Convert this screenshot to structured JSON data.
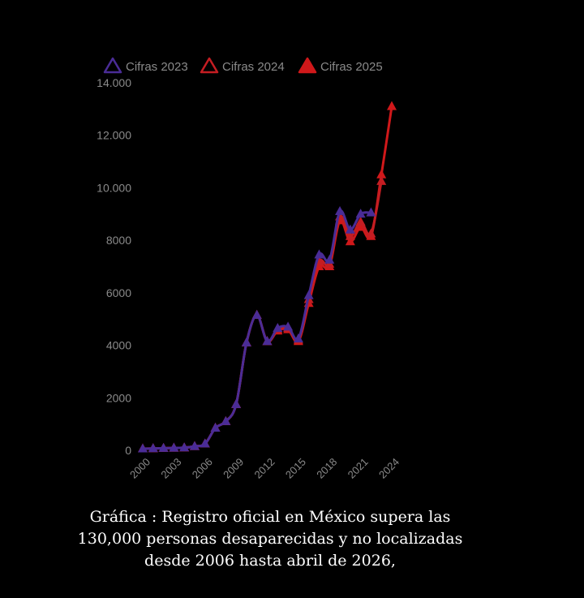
{
  "caption": {
    "line1": "Gráfica : Registro oficial en México supera las",
    "line2": "130,000 personas desaparecidas y no localizadas",
    "line3": "desde 2006 hasta abril de 2026,"
  },
  "chart_data": {
    "type": "line",
    "title": "",
    "xlabel": "",
    "ylabel": "",
    "legend_position": "top",
    "grid": false,
    "ylim": [
      0,
      14000
    ],
    "xlim": [
      2000,
      2024
    ],
    "y_ticks": [
      0,
      2000,
      4000,
      6000,
      8000,
      10000,
      12000,
      14000
    ],
    "y_tick_labels": [
      "0",
      "2000",
      "4000",
      "6000",
      "8000",
      "10.000",
      "12.000",
      "14.000"
    ],
    "x_ticks": [
      2000,
      2003,
      2006,
      2009,
      2012,
      2015,
      2018,
      2021,
      2024
    ],
    "x_tick_labels": [
      "2000",
      "2003",
      "2006",
      "2009",
      "2012",
      "2015",
      "2018",
      "2021",
      "2024"
    ],
    "series": [
      {
        "name": "Cifras 2025",
        "color": "#d0181a",
        "marker": "filled-triangle",
        "x": [
          2000,
          2001,
          2002,
          2003,
          2004,
          2005,
          2006,
          2007,
          2008,
          2009,
          2010,
          2011,
          2012,
          2013,
          2014,
          2015,
          2016,
          2017,
          2018,
          2019,
          2020,
          2021,
          2022,
          2023,
          2024
        ],
        "y": [
          60,
          70,
          80,
          90,
          100,
          150,
          250,
          850,
          1100,
          1750,
          4100,
          5150,
          4150,
          4550,
          4600,
          4150,
          5600,
          7000,
          7000,
          8750,
          7950,
          8500,
          8150,
          10500,
          13100
        ]
      },
      {
        "name": "Cifras 2024",
        "color": "#c41d22",
        "marker": "hollow-triangle",
        "x": [
          2000,
          2001,
          2002,
          2003,
          2004,
          2005,
          2006,
          2007,
          2008,
          2009,
          2010,
          2011,
          2012,
          2013,
          2014,
          2015,
          2016,
          2017,
          2018,
          2019,
          2020,
          2021,
          2022,
          2023
        ],
        "y": [
          60,
          70,
          80,
          90,
          100,
          150,
          250,
          850,
          1100,
          1750,
          4100,
          5150,
          4150,
          4600,
          4650,
          4200,
          5750,
          7200,
          7100,
          8900,
          8150,
          8700,
          8250,
          10250
        ]
      },
      {
        "name": "Cifras 2023",
        "color": "#4a2c96",
        "marker": "hollow-triangle",
        "x": [
          2000,
          2001,
          2002,
          2003,
          2004,
          2005,
          2006,
          2007,
          2008,
          2009,
          2010,
          2011,
          2012,
          2013,
          2014,
          2015,
          2016,
          2017,
          2018,
          2019,
          2020,
          2021,
          2022
        ],
        "y": [
          60,
          70,
          80,
          90,
          100,
          150,
          250,
          850,
          1100,
          1750,
          4100,
          5150,
          4150,
          4650,
          4700,
          4250,
          5900,
          7450,
          7250,
          9100,
          8400,
          9000,
          9050
        ]
      }
    ]
  }
}
